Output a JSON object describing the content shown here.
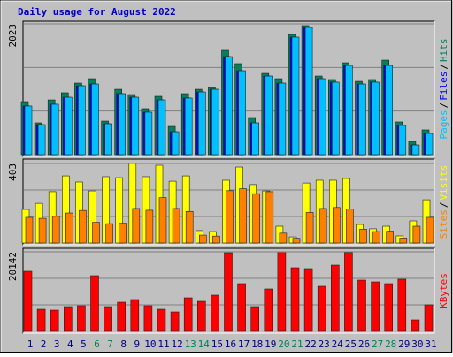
{
  "chart_data": [
    {
      "type": "bar",
      "title": "Daily usage for August 2022",
      "ylim": [
        0,
        2023
      ],
      "yticks": [
        2023
      ],
      "legend_separator": "/",
      "series": [
        {
          "name": "Hits",
          "color": "#00805c",
          "values": [
            820,
            492,
            847,
            957,
            1107,
            1175,
            519,
            1011,
            929,
            711,
            902,
            437,
            943,
            1011,
            1039,
            1613,
            1408,
            574,
            1257,
            1175,
            1859,
            1996,
            1216,
            1162,
            1421,
            1134,
            1162,
            1462,
            506,
            205,
            383
          ]
        },
        {
          "name": "Files",
          "color": "#0000ff",
          "values": [
            752,
            465,
            779,
            888,
            1066,
            1093,
            478,
            943,
            888,
            656,
            847,
            355,
            875,
            970,
            1011,
            1517,
            1298,
            492,
            1216,
            1107,
            1818,
            1968,
            1175,
            1121,
            1380,
            1093,
            1121,
            1380,
            451,
            150,
            328
          ]
        },
        {
          "name": "Pages",
          "color": "#00c0ff",
          "values": [
            752,
            465,
            779,
            888,
            1066,
            1093,
            478,
            943,
            888,
            656,
            847,
            355,
            875,
            970,
            1011,
            1517,
            1298,
            492,
            1216,
            1107,
            1818,
            1968,
            1175,
            1121,
            1380,
            1093,
            1121,
            1380,
            451,
            150,
            328
          ]
        }
      ]
    },
    {
      "type": "bar",
      "ylim": [
        0,
        403
      ],
      "yticks": [
        403
      ],
      "legend_separator": "/",
      "series": [
        {
          "name": "Visits",
          "color": "#ffff00",
          "values": [
            170,
            201,
            260,
            340,
            309,
            264,
            336,
            331,
            403,
            336,
            394,
            313,
            340,
            63,
            58,
            318,
            385,
            296,
            264,
            85,
            31,
            304,
            318,
            318,
            327,
            94,
            72,
            85,
            36,
            112,
            219
          ]
        },
        {
          "name": "Sites",
          "color": "#ff8000",
          "values": [
            130,
            125,
            135,
            152,
            165,
            105,
            98,
            100,
            175,
            166,
            230,
            175,
            160,
            40,
            35,
            265,
            275,
            250,
            260,
            50,
            24,
            155,
            175,
            180,
            173,
            70,
            58,
            60,
            25,
            85,
            130
          ]
        }
      ]
    },
    {
      "type": "bar",
      "ylim": [
        0,
        20142
      ],
      "yticks": [
        20142
      ],
      "categories": [
        "1",
        "2",
        "3",
        "4",
        "5",
        "6",
        "7",
        "8",
        "9",
        "10",
        "11",
        "12",
        "13",
        "14",
        "15",
        "16",
        "17",
        "18",
        "19",
        "20",
        "21",
        "22",
        "23",
        "24",
        "25",
        "26",
        "27",
        "28",
        "29",
        "30",
        "31"
      ],
      "category_colors": [
        "#000080",
        "#000080",
        "#000080",
        "#000080",
        "#000080",
        "#00805c",
        "#00805c",
        "#000080",
        "#000080",
        "#000080",
        "#000080",
        "#000080",
        "#00805c",
        "#00805c",
        "#000080",
        "#000080",
        "#000080",
        "#000080",
        "#000080",
        "#00805c",
        "#00805c",
        "#000080",
        "#000080",
        "#000080",
        "#000080",
        "#000080",
        "#00805c",
        "#00805c",
        "#000080",
        "#000080",
        "#000080"
      ],
      "series": [
        {
          "name": "KBytes",
          "color": "#ff0000",
          "values": [
            15218,
            5595,
            5371,
            6266,
            6490,
            14099,
            6266,
            7385,
            8057,
            6490,
            5595,
            4924,
            8505,
            7609,
            9176,
            19918,
            12085,
            6266,
            10743,
            20142,
            16114,
            15890,
            11414,
            16785,
            20000,
            12981,
            12533,
            12085,
            13205,
            2909,
            6714
          ]
        }
      ]
    }
  ]
}
